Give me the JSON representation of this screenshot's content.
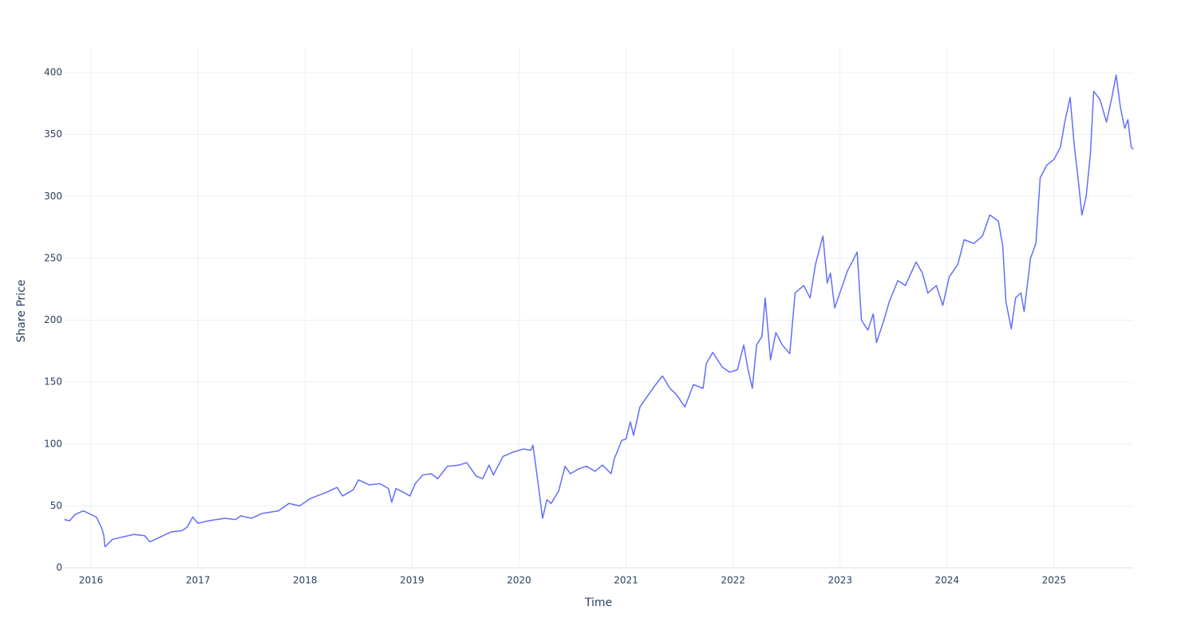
{
  "chart_data": {
    "type": "line",
    "x_label": "Time",
    "y_label": "Share Price",
    "color": "#636efa",
    "grid": true,
    "xlim": [
      2015.746,
      2025.739
    ],
    "xticks": [
      2016,
      2017,
      2018,
      2019,
      2020,
      2021,
      2022,
      2023,
      2024,
      2025
    ],
    "ylim": [
      0,
      420
    ],
    "yticks": [
      0,
      50,
      100,
      150,
      200,
      250,
      300,
      350,
      400
    ],
    "x": [
      2015.75,
      2015.8,
      2015.85,
      2015.9,
      2015.93,
      2016.0,
      2016.05,
      2016.1,
      2016.12,
      2016.13,
      2016.2,
      2016.3,
      2016.4,
      2016.5,
      2016.55,
      2016.65,
      2016.75,
      2016.85,
      2016.9,
      2016.95,
      2017.0,
      2017.1,
      2017.25,
      2017.35,
      2017.4,
      2017.5,
      2017.6,
      2017.75,
      2017.85,
      2017.95,
      2018.05,
      2018.2,
      2018.3,
      2018.35,
      2018.45,
      2018.5,
      2018.6,
      2018.7,
      2018.78,
      2018.81,
      2018.85,
      2018.92,
      2018.98,
      2019.03,
      2019.1,
      2019.18,
      2019.24,
      2019.33,
      2019.44,
      2019.51,
      2019.6,
      2019.66,
      2019.72,
      2019.76,
      2019.85,
      2019.93,
      2020.04,
      2020.11,
      2020.13,
      2020.16,
      2020.19,
      2020.22,
      2020.26,
      2020.3,
      2020.37,
      2020.43,
      2020.48,
      2020.56,
      2020.63,
      2020.71,
      2020.78,
      2020.86,
      2020.89,
      2020.96,
      2021.0,
      2021.04,
      2021.07,
      2021.13,
      2021.17,
      2021.26,
      2021.34,
      2021.41,
      2021.47,
      2021.55,
      2021.63,
      2021.72,
      2021.75,
      2021.81,
      2021.9,
      2021.97,
      2022.04,
      2022.1,
      2022.14,
      2022.18,
      2022.22,
      2022.27,
      2022.3,
      2022.35,
      2022.4,
      2022.46,
      2022.53,
      2022.58,
      2022.66,
      2022.72,
      2022.77,
      2022.84,
      2022.88,
      2022.91,
      2022.95,
      2023.01,
      2023.07,
      2023.16,
      2023.2,
      2023.26,
      2023.31,
      2023.34,
      2023.41,
      2023.46,
      2023.54,
      2023.61,
      2023.71,
      2023.77,
      2023.82,
      2023.9,
      2023.96,
      2024.02,
      2024.1,
      2024.16,
      2024.25,
      2024.33,
      2024.4,
      2024.48,
      2024.52,
      2024.55,
      2024.6,
      2024.64,
      2024.69,
      2024.72,
      2024.78,
      2024.83,
      2024.87,
      2024.93,
      2025.0,
      2025.06,
      2025.1,
      2025.15,
      2025.19,
      2025.23,
      2025.26,
      2025.3,
      2025.34,
      2025.37,
      2025.43,
      2025.49,
      2025.54,
      2025.58,
      2025.62,
      2025.66,
      2025.69,
      2025.72,
      2025.74
    ],
    "values": [
      39,
      38,
      43,
      45,
      46,
      43,
      41,
      32,
      26,
      17,
      23,
      25,
      27,
      26,
      21,
      25,
      29,
      30,
      33,
      41,
      36,
      38,
      40,
      39,
      42,
      40,
      44,
      46,
      52,
      50,
      56,
      61,
      65,
      58,
      63,
      71,
      67,
      68,
      64,
      53,
      64,
      61,
      58,
      68,
      75,
      76,
      72,
      82,
      83,
      85,
      74,
      72,
      83,
      75,
      90,
      93,
      96,
      95,
      99,
      80,
      60,
      40,
      55,
      52,
      62,
      82,
      76,
      80,
      82,
      78,
      83,
      76,
      88,
      103,
      104,
      118,
      107,
      130,
      135,
      146,
      155,
      145,
      140,
      130,
      148,
      145,
      165,
      174,
      162,
      158,
      160,
      180,
      160,
      145,
      180,
      187,
      218,
      168,
      190,
      180,
      173,
      222,
      228,
      218,
      245,
      268,
      230,
      238,
      210,
      225,
      240,
      255,
      200,
      192,
      205,
      182,
      200,
      215,
      232,
      228,
      247,
      238,
      222,
      228,
      212,
      235,
      245,
      265,
      262,
      268,
      285,
      280,
      260,
      215,
      193,
      218,
      222,
      207,
      250,
      262,
      315,
      325,
      330,
      340,
      360,
      380,
      340,
      310,
      285,
      300,
      335,
      385,
      378,
      360,
      380,
      398,
      372,
      355,
      362,
      340,
      338
    ]
  }
}
